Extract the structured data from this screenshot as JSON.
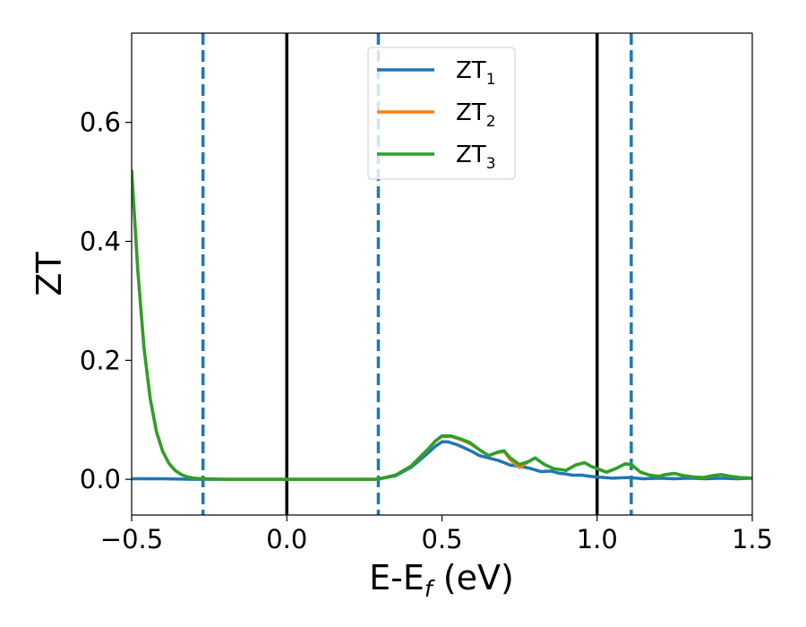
{
  "chart_data": {
    "type": "line",
    "xlabel": {
      "main": "E-E",
      "sub": "f",
      "rest": " (eV)"
    },
    "ylabel": "ZT",
    "xlim": [
      -0.5,
      1.5
    ],
    "ylim": [
      -0.06,
      0.75
    ],
    "xticks": [
      -0.5,
      0.0,
      0.5,
      1.0,
      1.5
    ],
    "xtick_labels": [
      "−0.5",
      "0.0",
      "0.5",
      "1.0",
      "1.5"
    ],
    "yticks": [
      0.0,
      0.2,
      0.4,
      0.6
    ],
    "ytick_labels": [
      "0.0",
      "0.2",
      "0.4",
      "0.6"
    ],
    "grid": false,
    "legend_position": "top-center",
    "vlines_solid": [
      0.0,
      1.0
    ],
    "vlines_dashed": [
      -0.27,
      0.295,
      1.11
    ],
    "vline_solid_color": "#000000",
    "vline_dashed_color": "#1f77b4",
    "series": [
      {
        "name": "ZT",
        "sub": "1",
        "color": "#1f77b4",
        "x": [
          -0.5,
          -0.45,
          -0.4,
          -0.3,
          -0.2,
          -0.1,
          0.0,
          0.1,
          0.2,
          0.28,
          0.3,
          0.35,
          0.4,
          0.45,
          0.48,
          0.5,
          0.52,
          0.55,
          0.58,
          0.6,
          0.62,
          0.65,
          0.68,
          0.7,
          0.72,
          0.75,
          0.78,
          0.8,
          0.82,
          0.85,
          0.88,
          0.9,
          0.92,
          0.95,
          0.98,
          1.0,
          1.05,
          1.1,
          1.15,
          1.2,
          1.25,
          1.3,
          1.35,
          1.4,
          1.45,
          1.5
        ],
        "y": [
          0.001,
          0.001,
          0.001,
          0.0,
          0.0,
          0.0,
          0.0,
          0.0,
          0.0,
          0.0,
          0.001,
          0.006,
          0.02,
          0.042,
          0.056,
          0.063,
          0.063,
          0.058,
          0.051,
          0.046,
          0.04,
          0.036,
          0.032,
          0.028,
          0.024,
          0.022,
          0.019,
          0.016,
          0.013,
          0.014,
          0.01,
          0.009,
          0.007,
          0.007,
          0.005,
          0.004,
          0.002,
          0.003,
          0.001,
          0.002,
          0.001,
          0.002,
          0.001,
          0.002,
          0.001,
          0.002
        ]
      },
      {
        "name": "ZT",
        "sub": "2",
        "color": "#ff7f0e",
        "x": [
          -0.5,
          -0.48,
          -0.46,
          -0.44,
          -0.42,
          -0.4,
          -0.38,
          -0.36,
          -0.34,
          -0.32,
          -0.3,
          -0.27,
          -0.2,
          -0.1,
          0.0,
          0.1,
          0.2,
          0.28,
          0.3,
          0.35,
          0.4,
          0.45,
          0.48,
          0.5,
          0.53,
          0.56,
          0.59,
          0.62,
          0.65,
          0.68,
          0.7,
          0.72,
          0.75,
          0.78,
          0.8,
          0.83,
          0.86,
          0.9,
          0.93,
          0.96,
          0.98,
          1.0,
          1.03,
          1.06,
          1.09,
          1.11,
          1.14,
          1.17,
          1.2,
          1.22,
          1.25,
          1.28,
          1.31,
          1.34,
          1.37,
          1.4,
          1.43,
          1.46,
          1.5
        ],
        "y": [
          0.52,
          0.35,
          0.22,
          0.135,
          0.08,
          0.047,
          0.027,
          0.015,
          0.008,
          0.004,
          0.002,
          0.001,
          0.0,
          0.0,
          0.0,
          0.0,
          0.0,
          0.0,
          0.001,
          0.007,
          0.022,
          0.048,
          0.065,
          0.072,
          0.072,
          0.067,
          0.06,
          0.05,
          0.04,
          0.045,
          0.047,
          0.033,
          0.02,
          0.03,
          0.036,
          0.025,
          0.018,
          0.015,
          0.024,
          0.028,
          0.022,
          0.018,
          0.012,
          0.018,
          0.026,
          0.025,
          0.012,
          0.007,
          0.005,
          0.008,
          0.01,
          0.006,
          0.004,
          0.003,
          0.006,
          0.008,
          0.005,
          0.003,
          0.002
        ]
      },
      {
        "name": "ZT",
        "sub": "3",
        "color": "#2ca02c",
        "x": [
          -0.5,
          -0.48,
          -0.46,
          -0.44,
          -0.42,
          -0.4,
          -0.38,
          -0.36,
          -0.34,
          -0.32,
          -0.3,
          -0.27,
          -0.2,
          -0.1,
          0.0,
          0.1,
          0.2,
          0.28,
          0.3,
          0.35,
          0.4,
          0.45,
          0.48,
          0.5,
          0.53,
          0.56,
          0.59,
          0.62,
          0.65,
          0.68,
          0.7,
          0.72,
          0.75,
          0.78,
          0.8,
          0.83,
          0.86,
          0.9,
          0.93,
          0.96,
          0.98,
          1.0,
          1.03,
          1.06,
          1.09,
          1.11,
          1.14,
          1.17,
          1.2,
          1.22,
          1.25,
          1.28,
          1.31,
          1.34,
          1.37,
          1.4,
          1.43,
          1.46,
          1.5
        ],
        "y": [
          0.52,
          0.35,
          0.22,
          0.135,
          0.08,
          0.047,
          0.027,
          0.015,
          0.008,
          0.004,
          0.002,
          0.001,
          0.0,
          0.0,
          0.0,
          0.0,
          0.0,
          0.0,
          0.001,
          0.007,
          0.022,
          0.048,
          0.065,
          0.073,
          0.073,
          0.068,
          0.062,
          0.05,
          0.04,
          0.046,
          0.048,
          0.036,
          0.025,
          0.03,
          0.036,
          0.025,
          0.018,
          0.015,
          0.024,
          0.028,
          0.022,
          0.018,
          0.012,
          0.018,
          0.026,
          0.025,
          0.012,
          0.007,
          0.005,
          0.008,
          0.01,
          0.006,
          0.004,
          0.003,
          0.006,
          0.008,
          0.005,
          0.003,
          0.002
        ]
      }
    ]
  }
}
